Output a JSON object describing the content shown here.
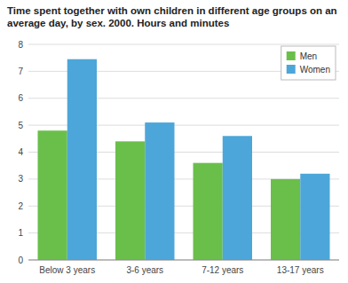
{
  "chart_data": {
    "type": "bar",
    "title": "Time spent together with own children in different age groups on an\naverage day, by sex. 2000. Hours and minutes",
    "categories": [
      "Below 3 years",
      "3-6 years",
      "7-12 years",
      "13-17 years"
    ],
    "series": [
      {
        "name": "Men",
        "color": "#6abf4b",
        "values": [
          4.8,
          4.4,
          3.6,
          3.0
        ]
      },
      {
        "name": "Women",
        "color": "#4da6d9",
        "values": [
          7.45,
          5.1,
          4.6,
          3.2
        ]
      }
    ],
    "ylim": [
      0,
      8
    ],
    "yticks": [
      0,
      1,
      2,
      3,
      4,
      5,
      6,
      7,
      8
    ],
    "grid": true,
    "legend": "upper right"
  }
}
